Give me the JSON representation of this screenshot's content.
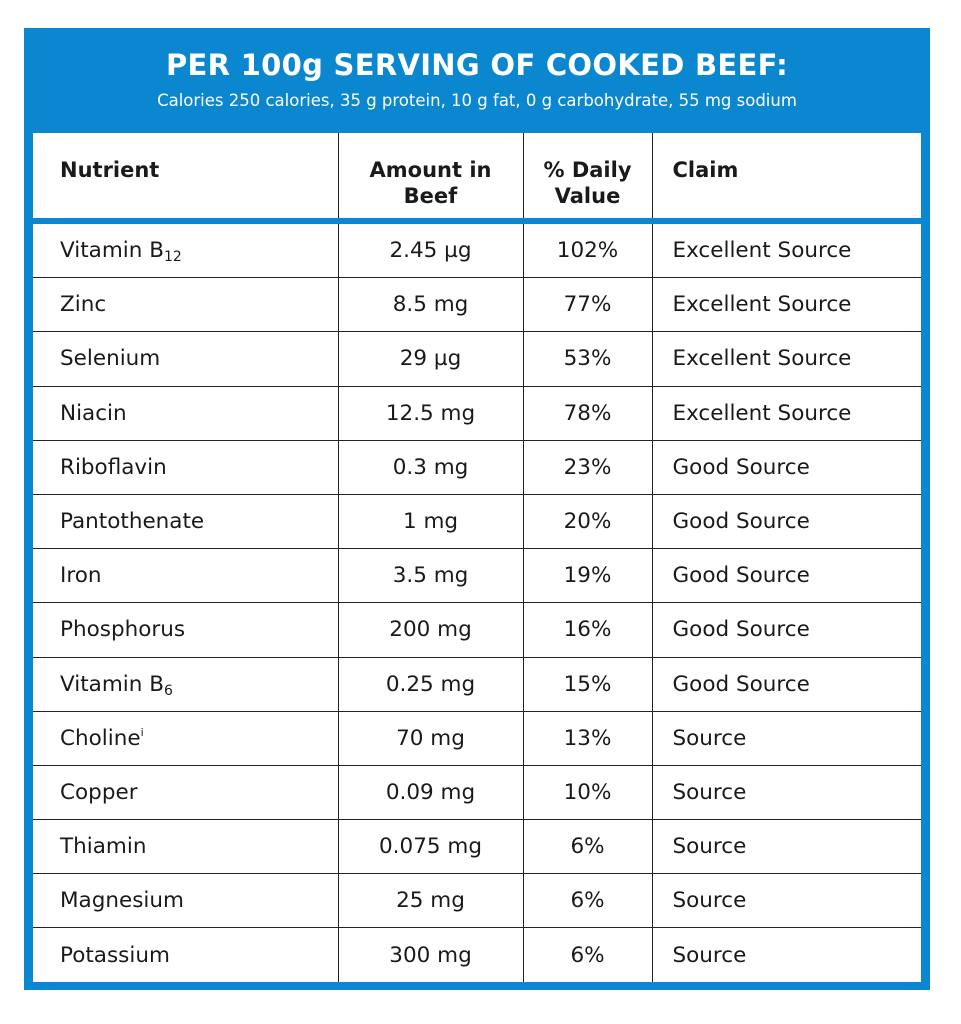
{
  "header": {
    "title": "PER 100g SERVING OF COOKED BEEF:",
    "subtitle": "Calories 250 calories, 35 g protein, 10 g fat, 0 g carbohydrate, 55 mg sodium"
  },
  "colors": {
    "accent": "#0a87cf",
    "text": "#1a1a1a"
  },
  "table": {
    "columns": [
      "Nutrient",
      "Amount in Beef",
      "% Daily Value",
      "Claim"
    ],
    "rows": [
      {
        "nutrient": "Vitamin B",
        "mark": "12",
        "mark_type": "sub",
        "amount": "2.45 µg",
        "dv": "102%",
        "claim": "Excellent Source"
      },
      {
        "nutrient": "Zinc",
        "amount": "8.5 mg",
        "dv": "77%",
        "claim": "Excellent Source"
      },
      {
        "nutrient": "Selenium",
        "amount": "29 µg",
        "dv": "53%",
        "claim": "Excellent Source"
      },
      {
        "nutrient": "Niacin",
        "amount": "12.5 mg",
        "dv": "78%",
        "claim": "Excellent Source"
      },
      {
        "nutrient": "Riboflavin",
        "amount": "0.3 mg",
        "dv": "23%",
        "claim": "Good Source"
      },
      {
        "nutrient": "Pantothenate",
        "amount": "1 mg",
        "dv": "20%",
        "claim": "Good Source"
      },
      {
        "nutrient": "Iron",
        "amount": "3.5 mg",
        "dv": "19%",
        "claim": "Good Source"
      },
      {
        "nutrient": "Phosphorus",
        "amount": "200 mg",
        "dv": "16%",
        "claim": "Good Source"
      },
      {
        "nutrient": "Vitamin B",
        "mark": "6",
        "mark_type": "sub",
        "amount": "0.25 mg",
        "dv": "15%",
        "claim": "Good Source"
      },
      {
        "nutrient": "Choline",
        "mark": "i",
        "mark_type": "sup",
        "amount": "70 mg",
        "dv": "13%",
        "claim": "Source"
      },
      {
        "nutrient": "Copper",
        "amount": "0.09 mg",
        "dv": "10%",
        "claim": "Source"
      },
      {
        "nutrient": "Thiamin",
        "amount": "0.075 mg",
        "dv": "6%",
        "claim": "Source"
      },
      {
        "nutrient": "Magnesium",
        "amount": "25 mg",
        "dv": "6%",
        "claim": "Source"
      },
      {
        "nutrient": "Potassium",
        "amount": "300 mg",
        "dv": "6%",
        "claim": "Source"
      }
    ]
  }
}
